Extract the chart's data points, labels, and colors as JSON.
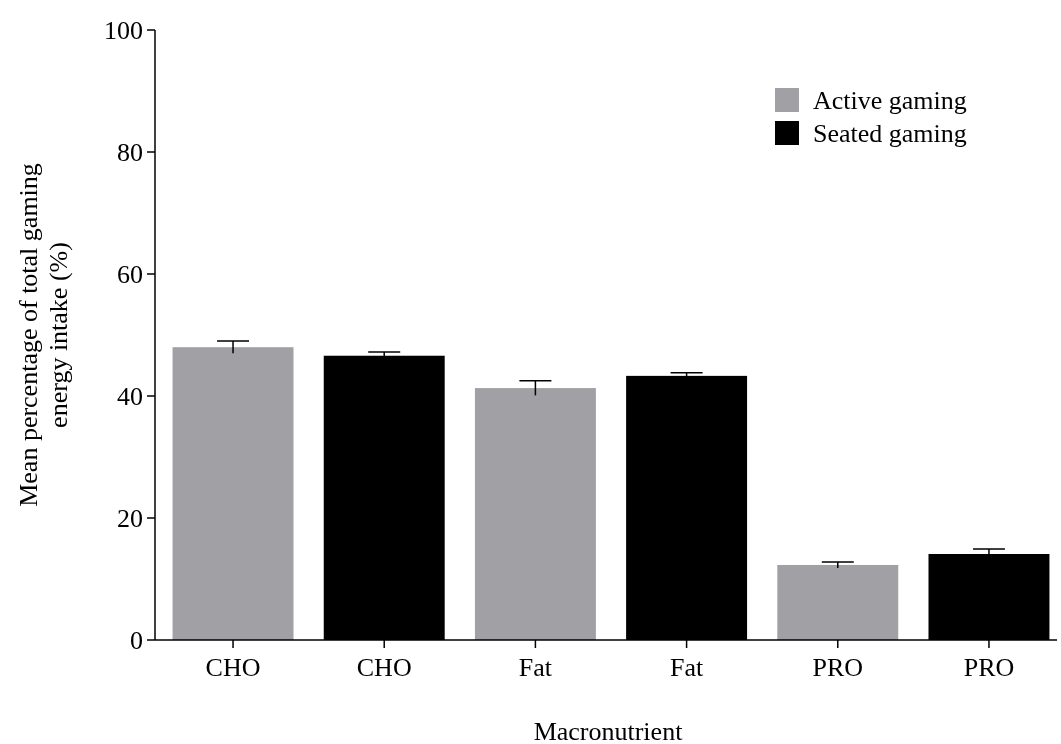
{
  "chart_data": {
    "type": "bar",
    "xlabel": "Macronutrient",
    "ylabel": "Mean percentage of total gaming energy intake (%)",
    "categories": [
      "CHO",
      "CHO",
      "Fat",
      "Fat",
      "PRO",
      "PRO"
    ],
    "series": [
      {
        "name": "Active gaming",
        "color": "#a1a0a5",
        "values": [
          48.0,
          null,
          41.3,
          null,
          12.3,
          null
        ],
        "errors": [
          1.0,
          null,
          1.2,
          null,
          0.5,
          null
        ]
      },
      {
        "name": "Seated gaming",
        "color": "#000000",
        "values": [
          null,
          46.6,
          null,
          43.3,
          null,
          14.1
        ],
        "errors": [
          null,
          0.6,
          null,
          0.5,
          null,
          0.8
        ]
      }
    ],
    "ylim": [
      0,
      100
    ],
    "yticks": [
      0,
      20,
      40,
      60,
      80,
      100
    ],
    "grid": false,
    "legend": "top right"
  }
}
